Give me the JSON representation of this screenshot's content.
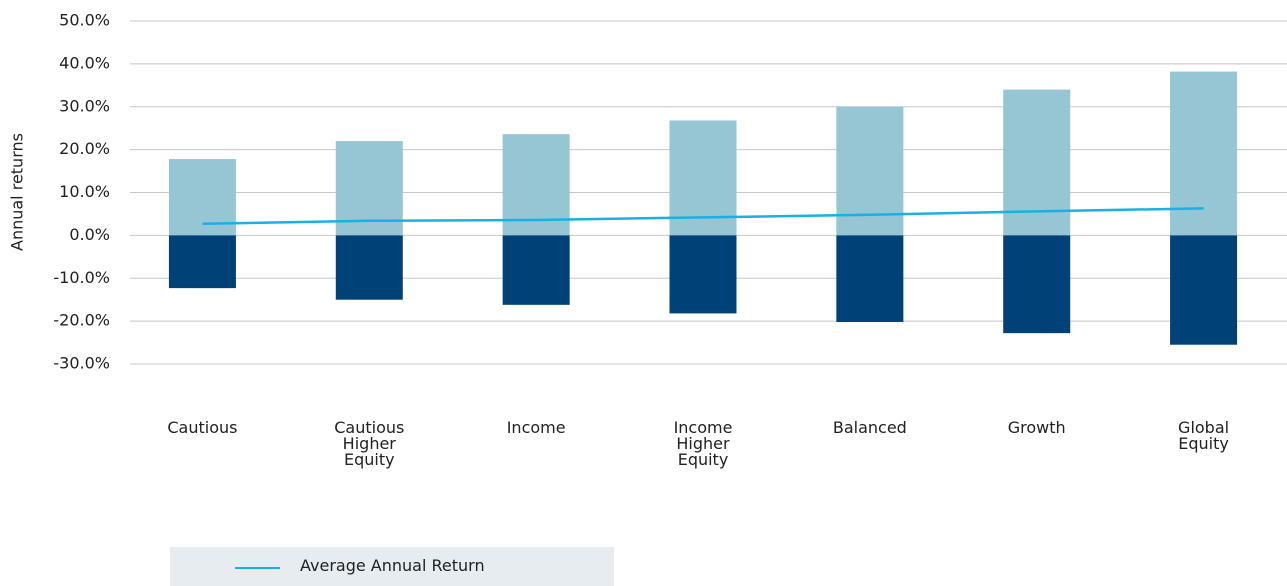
{
  "chart_data": {
    "type": "bar",
    "y_label": "Annual returns",
    "categories": [
      "Cautious",
      "Cautious Higher Equity",
      "Income",
      "Income Higher Equity",
      "Balanced",
      "Growth",
      "Global Equity"
    ],
    "series": [
      {
        "type": "bar",
        "color": "#96c5d3",
        "values": [
          17.8,
          22,
          23.6,
          26.8,
          30,
          34,
          38.2
        ]
      },
      {
        "type": "bar",
        "color": "#004178",
        "values": [
          -12.3,
          -15,
          -16.2,
          -18.2,
          -20.2,
          -22.8,
          -25.5
        ]
      },
      {
        "type": "line",
        "name": "Average Annual Return",
        "color": "#1ab0e6",
        "values": [
          2.7,
          3.4,
          3.6,
          4.2,
          4.8,
          5.6,
          6.3
        ]
      }
    ],
    "ylim": [
      -30,
      50
    ],
    "yticks": [
      {
        "value": 50,
        "label": "50.0%"
      },
      {
        "value": 40,
        "label": "40.0%"
      },
      {
        "value": 30,
        "label": "30.0%"
      },
      {
        "value": 20,
        "label": "20.0%"
      },
      {
        "value": 10,
        "label": "10.0%"
      },
      {
        "value": 0,
        "label": "0.0%"
      },
      {
        "value": -10,
        "label": "-10.0%"
      },
      {
        "value": -20,
        "label": "-20.0%"
      },
      {
        "value": -30,
        "label": "-30.0%"
      }
    ],
    "grid": true
  }
}
